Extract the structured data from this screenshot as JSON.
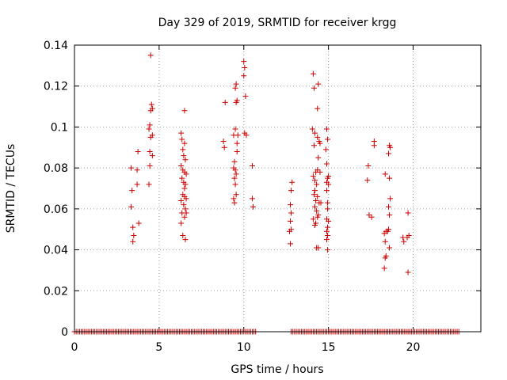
{
  "chart_data": {
    "type": "scatter",
    "title": "Day 329 of 2019, SRMTID for receiver krgg",
    "xlabel": "GPS time / hours",
    "ylabel": "SRMTID / TECUs",
    "xlim": [
      0,
      24
    ],
    "ylim": [
      0,
      0.14
    ],
    "xticks": [
      0,
      5,
      10,
      15,
      20
    ],
    "yticks": [
      0,
      0.02,
      0.04,
      0.06,
      0.08,
      0.1,
      0.12,
      0.14
    ],
    "ytick_labels": [
      "0",
      "0.02",
      "0.04",
      "0.06",
      "0.08",
      "0.1",
      "0.12",
      "0.14"
    ],
    "xtick_labels": [
      "0",
      "5",
      "10",
      "15",
      "20"
    ],
    "grid": true,
    "marker": "+",
    "color": "#cc0000",
    "zero_bands": [
      [
        0.0,
        10.7
      ],
      [
        12.8,
        22.7
      ]
    ],
    "series": [
      {
        "name": "SRMTID",
        "points": [
          [
            3.35,
            0.08
          ],
          [
            3.4,
            0.069
          ],
          [
            3.35,
            0.061
          ],
          [
            3.45,
            0.051
          ],
          [
            3.5,
            0.047
          ],
          [
            3.45,
            0.044
          ],
          [
            3.7,
            0.079
          ],
          [
            3.75,
            0.088
          ],
          [
            3.7,
            0.072
          ],
          [
            3.8,
            0.053
          ],
          [
            4.5,
            0.135
          ],
          [
            4.55,
            0.111
          ],
          [
            4.6,
            0.109
          ],
          [
            4.5,
            0.108
          ],
          [
            4.45,
            0.101
          ],
          [
            4.4,
            0.099
          ],
          [
            4.6,
            0.096
          ],
          [
            4.5,
            0.095
          ],
          [
            4.45,
            0.088
          ],
          [
            4.6,
            0.086
          ],
          [
            4.45,
            0.081
          ],
          [
            4.4,
            0.072
          ],
          [
            6.3,
            0.097
          ],
          [
            6.35,
            0.094
          ],
          [
            6.5,
            0.092
          ],
          [
            6.4,
            0.089
          ],
          [
            6.45,
            0.086
          ],
          [
            6.55,
            0.084
          ],
          [
            6.3,
            0.081
          ],
          [
            6.4,
            0.079
          ],
          [
            6.5,
            0.078
          ],
          [
            6.6,
            0.077
          ],
          [
            6.35,
            0.075
          ],
          [
            6.45,
            0.073
          ],
          [
            6.55,
            0.072
          ],
          [
            6.5,
            0.07
          ],
          [
            6.4,
            0.067
          ],
          [
            6.5,
            0.066
          ],
          [
            6.6,
            0.065
          ],
          [
            6.3,
            0.064
          ],
          [
            6.45,
            0.062
          ],
          [
            6.55,
            0.06
          ],
          [
            6.35,
            0.058
          ],
          [
            6.6,
            0.058
          ],
          [
            6.5,
            0.056
          ],
          [
            6.3,
            0.053
          ],
          [
            6.4,
            0.047
          ],
          [
            6.55,
            0.045
          ],
          [
            6.5,
            0.108
          ],
          [
            8.9,
            0.112
          ],
          [
            8.8,
            0.093
          ],
          [
            8.85,
            0.09
          ],
          [
            9.4,
            0.096
          ],
          [
            9.55,
            0.121
          ],
          [
            9.5,
            0.119
          ],
          [
            9.6,
            0.113
          ],
          [
            9.55,
            0.112
          ],
          [
            9.5,
            0.099
          ],
          [
            9.65,
            0.096
          ],
          [
            9.6,
            0.088
          ],
          [
            9.45,
            0.083
          ],
          [
            9.4,
            0.08
          ],
          [
            9.5,
            0.079
          ],
          [
            9.55,
            0.077
          ],
          [
            9.45,
            0.075
          ],
          [
            9.5,
            0.072
          ],
          [
            9.55,
            0.067
          ],
          [
            9.4,
            0.065
          ],
          [
            9.45,
            0.063
          ],
          [
            9.6,
            0.092
          ],
          [
            10.0,
            0.132
          ],
          [
            10.05,
            0.129
          ],
          [
            10.0,
            0.125
          ],
          [
            10.1,
            0.115
          ],
          [
            10.05,
            0.097
          ],
          [
            10.15,
            0.096
          ],
          [
            10.5,
            0.081
          ],
          [
            10.5,
            0.065
          ],
          [
            10.55,
            0.061
          ],
          [
            12.85,
            0.073
          ],
          [
            12.8,
            0.069
          ],
          [
            12.75,
            0.062
          ],
          [
            12.8,
            0.058
          ],
          [
            12.75,
            0.054
          ],
          [
            12.8,
            0.05
          ],
          [
            12.7,
            0.049
          ],
          [
            12.75,
            0.043
          ],
          [
            14.1,
            0.126
          ],
          [
            14.15,
            0.119
          ],
          [
            14.4,
            0.121
          ],
          [
            14.35,
            0.109
          ],
          [
            14.05,
            0.099
          ],
          [
            14.2,
            0.097
          ],
          [
            14.35,
            0.095
          ],
          [
            14.45,
            0.093
          ],
          [
            14.5,
            0.092
          ],
          [
            14.15,
            0.091
          ],
          [
            14.4,
            0.085
          ],
          [
            14.35,
            0.079
          ],
          [
            14.25,
            0.078
          ],
          [
            14.1,
            0.076
          ],
          [
            14.2,
            0.074
          ],
          [
            14.3,
            0.072
          ],
          [
            14.2,
            0.069
          ],
          [
            14.15,
            0.067
          ],
          [
            14.35,
            0.066
          ],
          [
            14.25,
            0.064
          ],
          [
            14.45,
            0.063
          ],
          [
            14.2,
            0.061
          ],
          [
            14.3,
            0.059
          ],
          [
            14.4,
            0.057
          ],
          [
            14.35,
            0.056
          ],
          [
            14.1,
            0.055
          ],
          [
            14.25,
            0.053
          ],
          [
            14.2,
            0.052
          ],
          [
            14.3,
            0.041
          ],
          [
            14.4,
            0.041
          ],
          [
            14.5,
            0.078
          ],
          [
            14.55,
            0.063
          ],
          [
            14.9,
            0.099
          ],
          [
            14.95,
            0.094
          ],
          [
            14.85,
            0.089
          ],
          [
            14.9,
            0.082
          ],
          [
            15.0,
            0.076
          ],
          [
            14.95,
            0.075
          ],
          [
            14.9,
            0.073
          ],
          [
            15.0,
            0.072
          ],
          [
            14.9,
            0.069
          ],
          [
            14.95,
            0.063
          ],
          [
            14.95,
            0.06
          ],
          [
            14.9,
            0.055
          ],
          [
            15.0,
            0.054
          ],
          [
            14.95,
            0.051
          ],
          [
            14.9,
            0.049
          ],
          [
            14.95,
            0.047
          ],
          [
            14.9,
            0.045
          ],
          [
            14.95,
            0.04
          ],
          [
            17.35,
            0.081
          ],
          [
            17.3,
            0.074
          ],
          [
            17.4,
            0.057
          ],
          [
            17.55,
            0.056
          ],
          [
            17.7,
            0.093
          ],
          [
            17.7,
            0.091
          ],
          [
            18.35,
            0.077
          ],
          [
            18.4,
            0.049
          ],
          [
            18.3,
            0.048
          ],
          [
            18.35,
            0.044
          ],
          [
            18.4,
            0.037
          ],
          [
            18.35,
            0.036
          ],
          [
            18.3,
            0.031
          ],
          [
            18.6,
            0.091
          ],
          [
            18.65,
            0.09
          ],
          [
            18.55,
            0.087
          ],
          [
            18.6,
            0.075
          ],
          [
            18.65,
            0.065
          ],
          [
            18.55,
            0.061
          ],
          [
            18.6,
            0.057
          ],
          [
            18.55,
            0.05
          ],
          [
            18.5,
            0.049
          ],
          [
            18.6,
            0.041
          ],
          [
            19.4,
            0.046
          ],
          [
            19.45,
            0.044
          ],
          [
            19.7,
            0.058
          ],
          [
            19.75,
            0.047
          ],
          [
            19.65,
            0.046
          ],
          [
            19.7,
            0.029
          ]
        ]
      }
    ]
  }
}
